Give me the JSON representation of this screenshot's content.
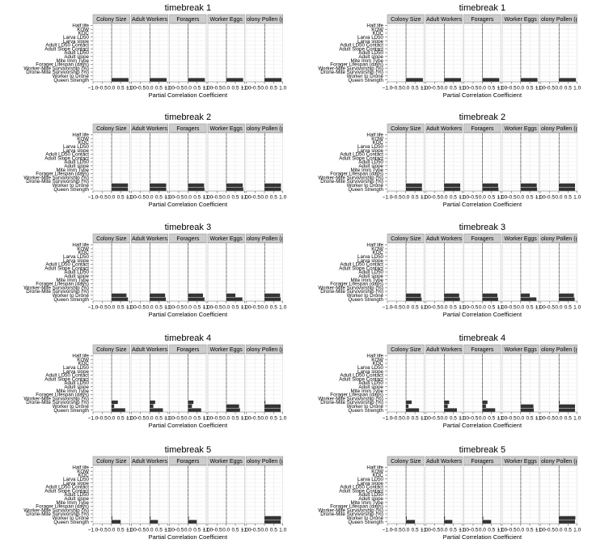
{
  "chart_data": {
    "type": "bar",
    "orientation": "horizontal",
    "layout": "5 rows x 2 columns of plots; each plot has 5 facet panels",
    "xlabel": "Partial Correlation Coefficient",
    "xlim": [
      -1,
      1
    ],
    "x_ticks": [
      -1.0,
      -0.5,
      0.0,
      0.5,
      1.0
    ],
    "x_tick_labels": [
      "−1.0",
      "−0.5",
      "0.0",
      "0.5",
      "1.0"
    ],
    "grid": true,
    "facets": [
      "Colony Size",
      "Adult Workers",
      "Foragers",
      "Worker Eggs",
      "Colony Pollen (g)"
    ],
    "variables": [
      "Half life",
      "KOW",
      "KOC",
      "Larva LD50",
      "Larva slope",
      "Adult LD50 Contact",
      "Adult Slope Contact",
      "Adult LD50",
      "Adult slope",
      "Mite Imm Type",
      "Forager Lifespan (days)",
      "Worker-Mite Survivorship (%)",
      "Drone-Mite Survivorship (%)",
      "Worker to Drone",
      "Queen Strength"
    ],
    "plots": [
      {
        "title": "timebreak 1",
        "values": [
          [
            0.01,
            0.01,
            0.0,
            0.01,
            0.0,
            0.01,
            0.0,
            0.01,
            0.01,
            0.0,
            0.01,
            0.01,
            0.0,
            0.02,
            0.93
          ],
          [
            0.01,
            0.01,
            0.0,
            0.01,
            0.0,
            0.01,
            0.0,
            0.01,
            0.01,
            0.0,
            0.01,
            0.01,
            0.0,
            0.02,
            0.92
          ],
          [
            0.01,
            0.01,
            0.0,
            0.01,
            0.0,
            0.01,
            0.0,
            0.01,
            0.01,
            0.0,
            0.01,
            0.01,
            0.0,
            0.02,
            0.92
          ],
          [
            0.01,
            0.01,
            0.0,
            0.01,
            0.0,
            0.01,
            0.0,
            0.01,
            0.01,
            0.0,
            0.01,
            0.01,
            0.0,
            0.02,
            0.92
          ],
          [
            0.01,
            0.01,
            0.0,
            0.01,
            0.0,
            0.01,
            0.0,
            0.01,
            0.01,
            0.0,
            0.01,
            0.01,
            0.0,
            0.02,
            0.93
          ]
        ]
      },
      {
        "title": "timebreak 1",
        "values": [
          [
            0.01,
            0.01,
            0.0,
            0.01,
            0.0,
            0.01,
            0.0,
            0.01,
            0.01,
            0.0,
            0.01,
            0.01,
            0.0,
            0.02,
            0.93
          ],
          [
            0.01,
            0.01,
            0.0,
            0.01,
            0.0,
            0.01,
            0.0,
            0.01,
            0.01,
            0.0,
            0.01,
            0.01,
            0.0,
            0.02,
            0.92
          ],
          [
            0.01,
            0.01,
            0.0,
            0.01,
            0.0,
            0.01,
            0.0,
            0.01,
            0.01,
            0.0,
            0.01,
            0.01,
            0.0,
            0.02,
            0.92
          ],
          [
            0.01,
            0.01,
            0.0,
            0.01,
            0.0,
            0.01,
            0.0,
            0.01,
            0.01,
            0.0,
            0.01,
            0.01,
            0.0,
            0.02,
            0.92
          ],
          [
            0.01,
            0.01,
            0.0,
            0.01,
            0.0,
            0.01,
            0.0,
            0.01,
            0.01,
            0.0,
            0.01,
            0.01,
            0.0,
            0.02,
            0.93
          ]
        ]
      },
      {
        "title": "timebreak 2",
        "values": [
          [
            0.01,
            0.0,
            0.01,
            0.0,
            0.01,
            0.0,
            0.01,
            0.0,
            0.01,
            0.01,
            0.0,
            0.01,
            0.02,
            0.9,
            0.9
          ],
          [
            0.01,
            0.0,
            0.01,
            0.0,
            0.01,
            0.0,
            0.01,
            0.0,
            0.01,
            0.01,
            0.0,
            0.01,
            0.02,
            0.9,
            0.9
          ],
          [
            0.01,
            0.0,
            0.01,
            0.0,
            0.01,
            0.0,
            0.01,
            0.0,
            0.01,
            0.01,
            0.0,
            0.01,
            0.02,
            0.88,
            0.9
          ],
          [
            0.01,
            0.0,
            0.01,
            0.0,
            0.01,
            0.0,
            0.01,
            0.0,
            0.01,
            0.01,
            0.0,
            0.01,
            0.02,
            0.9,
            0.93
          ],
          [
            0.01,
            0.0,
            0.01,
            0.0,
            0.01,
            0.0,
            0.01,
            0.0,
            0.01,
            0.01,
            0.0,
            0.01,
            0.02,
            0.9,
            0.9
          ]
        ]
      },
      {
        "title": "timebreak 2",
        "values": [
          [
            0.01,
            0.0,
            0.01,
            0.0,
            0.01,
            0.0,
            0.01,
            0.0,
            0.01,
            0.01,
            0.0,
            0.01,
            0.02,
            0.88,
            0.88
          ],
          [
            0.01,
            0.0,
            0.01,
            0.0,
            0.01,
            0.0,
            0.01,
            0.0,
            0.01,
            0.01,
            0.0,
            0.01,
            0.02,
            0.88,
            0.88
          ],
          [
            0.01,
            0.0,
            0.01,
            0.0,
            0.01,
            0.0,
            0.01,
            0.0,
            0.01,
            0.01,
            0.0,
            0.01,
            0.02,
            0.86,
            0.88
          ],
          [
            0.01,
            0.0,
            0.01,
            0.0,
            0.01,
            0.0,
            0.01,
            0.0,
            0.01,
            0.01,
            0.0,
            0.01,
            0.02,
            0.88,
            0.9
          ],
          [
            0.01,
            0.0,
            0.01,
            0.0,
            0.01,
            0.0,
            0.01,
            0.0,
            0.01,
            0.01,
            0.0,
            0.01,
            0.02,
            0.88,
            0.88
          ]
        ]
      },
      {
        "title": "timebreak 3",
        "values": [
          [
            0.0,
            0.01,
            0.0,
            0.01,
            0.0,
            0.01,
            0.01,
            0.0,
            0.01,
            0.0,
            0.01,
            0.01,
            0.02,
            0.82,
            0.9
          ],
          [
            0.0,
            0.01,
            0.0,
            0.01,
            0.0,
            0.01,
            0.01,
            0.0,
            0.01,
            0.0,
            0.01,
            0.01,
            0.02,
            0.84,
            0.88
          ],
          [
            0.0,
            0.01,
            0.0,
            0.01,
            0.0,
            0.01,
            0.01,
            0.0,
            0.01,
            0.0,
            0.01,
            0.01,
            0.02,
            0.82,
            0.9
          ],
          [
            0.0,
            0.01,
            0.0,
            0.01,
            0.0,
            0.01,
            0.01,
            0.0,
            0.01,
            0.0,
            0.01,
            0.01,
            0.02,
            0.5,
            0.88
          ],
          [
            0.0,
            0.01,
            0.0,
            0.01,
            0.0,
            0.01,
            0.01,
            0.0,
            0.01,
            0.0,
            0.01,
            0.01,
            0.02,
            0.85,
            0.88
          ]
        ]
      },
      {
        "title": "timebreak 3",
        "values": [
          [
            0.0,
            0.01,
            0.0,
            0.01,
            0.0,
            0.01,
            0.01,
            0.0,
            0.01,
            0.0,
            0.01,
            0.01,
            0.02,
            0.82,
            0.86
          ],
          [
            0.0,
            0.01,
            0.0,
            0.01,
            0.0,
            0.01,
            0.01,
            0.0,
            0.01,
            0.0,
            0.01,
            0.01,
            0.02,
            0.82,
            0.86
          ],
          [
            0.0,
            0.01,
            0.0,
            0.01,
            0.0,
            0.01,
            0.01,
            0.0,
            0.01,
            0.0,
            0.01,
            0.01,
            0.02,
            0.82,
            0.86
          ],
          [
            0.0,
            0.01,
            0.0,
            0.01,
            0.0,
            0.01,
            0.01,
            0.0,
            0.01,
            0.0,
            0.01,
            0.01,
            0.02,
            0.5,
            0.86
          ],
          [
            0.0,
            0.01,
            0.0,
            0.01,
            0.0,
            0.01,
            0.01,
            0.0,
            0.01,
            0.0,
            0.01,
            0.01,
            0.02,
            0.82,
            0.86
          ]
        ]
      },
      {
        "title": "timebreak 4",
        "values": [
          [
            0.01,
            0.0,
            0.01,
            0.0,
            0.01,
            0.0,
            0.01,
            0.01,
            0.0,
            0.01,
            0.0,
            0.02,
            0.35,
            0.15,
            0.75
          ],
          [
            0.01,
            0.0,
            0.01,
            0.0,
            0.01,
            0.0,
            0.01,
            0.01,
            0.0,
            0.01,
            0.0,
            0.02,
            0.3,
            0.2,
            0.72
          ],
          [
            0.01,
            0.0,
            0.01,
            0.0,
            0.01,
            0.0,
            0.01,
            0.01,
            0.0,
            0.01,
            0.0,
            0.02,
            0.3,
            0.22,
            0.72
          ],
          [
            0.01,
            0.0,
            0.01,
            0.0,
            0.01,
            0.0,
            0.01,
            0.01,
            0.0,
            0.01,
            0.0,
            0.02,
            0.0,
            0.7,
            0.75
          ],
          [
            0.01,
            0.0,
            0.01,
            0.0,
            0.01,
            0.0,
            0.01,
            0.01,
            0.0,
            0.01,
            0.0,
            0.02,
            0.05,
            0.88,
            0.88
          ]
        ]
      },
      {
        "title": "timebreak 4",
        "values": [
          [
            0.01,
            0.0,
            0.01,
            0.0,
            0.01,
            0.0,
            0.01,
            0.01,
            0.0,
            0.01,
            0.0,
            0.02,
            0.32,
            0.15,
            0.72
          ],
          [
            0.01,
            0.0,
            0.01,
            0.0,
            0.01,
            0.0,
            0.01,
            0.01,
            0.0,
            0.01,
            0.0,
            0.02,
            0.28,
            0.2,
            0.7
          ],
          [
            0.01,
            0.0,
            0.01,
            0.0,
            0.01,
            0.0,
            0.01,
            0.01,
            0.0,
            0.01,
            0.0,
            0.02,
            0.28,
            0.2,
            0.7
          ],
          [
            0.01,
            0.0,
            0.01,
            0.0,
            0.01,
            0.0,
            0.01,
            0.01,
            0.0,
            0.01,
            0.0,
            0.02,
            0.0,
            0.7,
            0.72
          ],
          [
            0.01,
            0.0,
            0.01,
            0.0,
            0.01,
            0.0,
            0.01,
            0.01,
            0.0,
            0.01,
            0.0,
            0.02,
            0.05,
            0.88,
            0.88
          ]
        ]
      },
      {
        "title": "timebreak 5",
        "values": [
          [
            0.0,
            0.01,
            0.0,
            0.01,
            0.0,
            0.01,
            0.0,
            0.01,
            0.0,
            0.01,
            0.0,
            0.01,
            0.02,
            0.05,
            0.5
          ],
          [
            0.0,
            0.01,
            0.0,
            0.01,
            0.0,
            0.01,
            0.0,
            0.01,
            0.0,
            0.01,
            0.0,
            0.01,
            0.02,
            0.05,
            0.45
          ],
          [
            0.0,
            0.01,
            0.0,
            0.01,
            0.0,
            0.01,
            0.0,
            0.01,
            0.0,
            0.01,
            0.0,
            0.01,
            0.02,
            0.05,
            0.48
          ],
          [
            0.0,
            0.01,
            0.0,
            0.01,
            0.0,
            0.01,
            0.0,
            0.01,
            0.0,
            0.01,
            0.0,
            0.01,
            0.02,
            0.02,
            0.02
          ],
          [
            0.0,
            0.01,
            0.0,
            0.01,
            0.0,
            0.01,
            0.0,
            0.01,
            0.0,
            0.01,
            0.0,
            0.01,
            0.02,
            0.9,
            0.88
          ]
        ]
      },
      {
        "title": "timebreak 5",
        "values": [
          [
            0.0,
            0.01,
            0.0,
            0.01,
            0.0,
            0.01,
            0.0,
            0.01,
            0.0,
            0.01,
            0.0,
            0.01,
            0.02,
            0.05,
            0.5
          ],
          [
            0.0,
            0.01,
            0.0,
            0.01,
            0.0,
            0.01,
            0.0,
            0.01,
            0.0,
            0.01,
            0.0,
            0.01,
            0.02,
            0.05,
            0.45
          ],
          [
            0.0,
            0.01,
            0.0,
            0.01,
            0.0,
            0.01,
            0.0,
            0.01,
            0.0,
            0.01,
            0.0,
            0.01,
            0.02,
            0.05,
            0.48
          ],
          [
            0.0,
            0.01,
            0.0,
            0.01,
            0.0,
            0.01,
            0.0,
            0.01,
            0.0,
            0.01,
            0.0,
            0.01,
            0.02,
            0.02,
            0.02
          ],
          [
            0.0,
            0.01,
            0.0,
            0.01,
            0.0,
            0.01,
            0.0,
            0.01,
            0.0,
            0.01,
            0.0,
            0.01,
            0.02,
            0.9,
            0.88
          ]
        ]
      }
    ]
  },
  "colors": {
    "bar": "#333333",
    "strip_fill": "#cccccc",
    "strip_border": "#9a9a9a",
    "panel_border": "#7f7f7f",
    "grid": "#ebebeb"
  }
}
